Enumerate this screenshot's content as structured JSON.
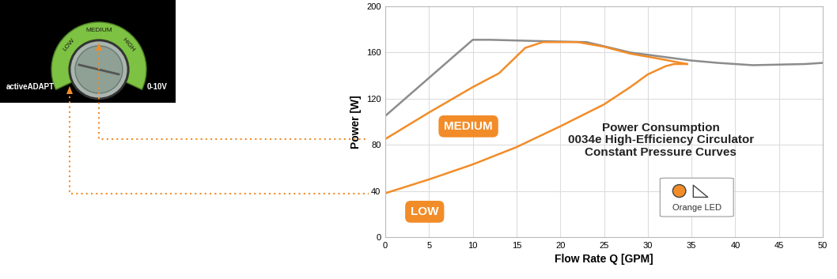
{
  "chart_data": {
    "type": "line",
    "title": "Power Consumption\n0034e High-Efficiency Circulator\nConstant Pressure Curves",
    "x_label": "Flow Rate Q [GPM]",
    "y_label": "Power [W]",
    "xlim": [
      0,
      50
    ],
    "ylim": [
      0,
      200
    ],
    "xticks": [
      0,
      5,
      10,
      15,
      20,
      25,
      30,
      35,
      40,
      45,
      50
    ],
    "yticks": [
      0,
      40,
      80,
      120,
      160,
      200
    ],
    "grid": true,
    "series": [
      {
        "color": "#8c8c8c",
        "x": [
          0,
          10,
          12,
          17,
          23,
          28,
          35,
          38,
          42,
          48,
          50
        ],
        "values": [
          105,
          171,
          171,
          170,
          169,
          160,
          153,
          151,
          149,
          150,
          151
        ]
      },
      {
        "name": "MEDIUM",
        "color": "#f28c28",
        "x": [
          0,
          5,
          10,
          13,
          16,
          18,
          22,
          25,
          28,
          31,
          34.5
        ],
        "values": [
          85,
          108,
          130,
          142,
          164,
          169,
          169,
          165,
          159,
          155,
          150
        ]
      },
      {
        "name": "LOW",
        "color": "#f28c28",
        "x": [
          0,
          5,
          10,
          15,
          20,
          25,
          28,
          30,
          32,
          33,
          34.5
        ],
        "values": [
          38,
          50,
          63,
          78,
          96,
          115,
          130,
          141,
          148,
          150,
          150
        ]
      }
    ],
    "annotations": [
      "Orange LED"
    ]
  },
  "dial": {
    "labels": [
      "LOW",
      "MEDIUM",
      "HIGH"
    ],
    "left_label": "activeADAPT",
    "right_label": "0-10V"
  }
}
